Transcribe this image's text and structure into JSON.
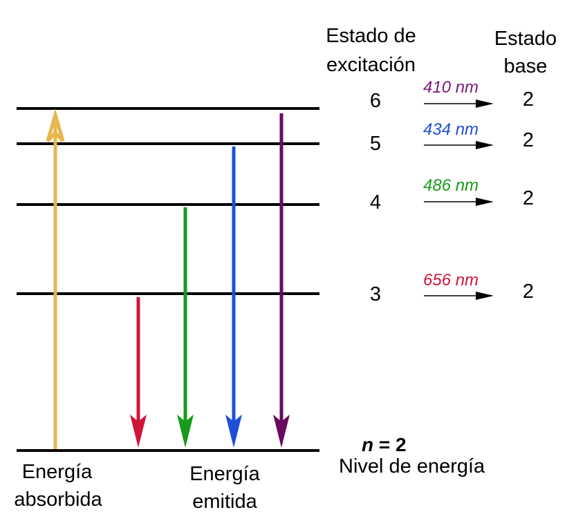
{
  "headers": {
    "excited_state": [
      "Estado de",
      "excitación"
    ],
    "ground_state": [
      "Estado",
      "base"
    ]
  },
  "transitions": [
    {
      "upper": "6",
      "lower": "2",
      "wavelength": "410 nm",
      "color": "#7a1a7a"
    },
    {
      "upper": "5",
      "lower": "2",
      "wavelength": "434 nm",
      "color": "#1f4fd6"
    },
    {
      "upper": "4",
      "lower": "2",
      "wavelength": "486 nm",
      "color": "#1a9a1a"
    },
    {
      "upper": "3",
      "lower": "2",
      "wavelength": "656 nm",
      "color": "#d0153a"
    }
  ],
  "ground_level": {
    "n_label": "n",
    "n_value": "= 2",
    "caption": "Nivel de energía"
  },
  "absorbed": {
    "label": [
      "Energía",
      "absorbida"
    ],
    "color": "#e8b64c"
  },
  "emitted": {
    "label": [
      "Energía",
      "emitida"
    ]
  },
  "arrow_colors": {
    "red": "#d0153a",
    "green": "#1a9a1a",
    "blue": "#1f4fd6",
    "purple": "#6a0a5e",
    "black": "#000000"
  }
}
